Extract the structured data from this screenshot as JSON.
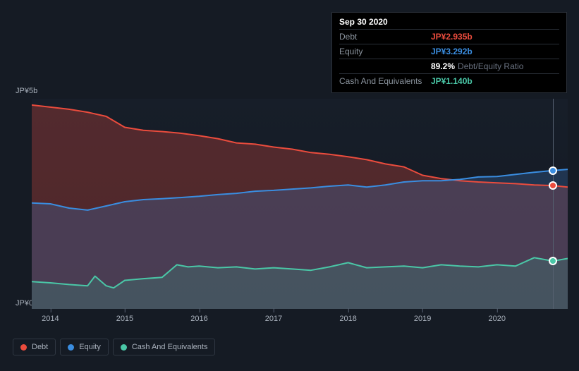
{
  "tooltip": {
    "date": "Sep 30 2020",
    "rows": [
      {
        "label": "Debt",
        "value": "JP¥2.935b",
        "cls": "v-debt"
      },
      {
        "label": "Equity",
        "value": "JP¥3.292b",
        "cls": "v-equity"
      },
      {
        "label": "",
        "value": "89.2%",
        "suffix": "Debt/Equity Ratio",
        "cls": "v-white"
      },
      {
        "label": "Cash And Equivalents",
        "value": "JP¥1.140b",
        "cls": "v-cash"
      }
    ]
  },
  "chart": {
    "type": "area",
    "background_color": "#171e29",
    "ylim": [
      0,
      5
    ],
    "y_unit_prefix": "JP¥",
    "y_unit_suffix": "b",
    "yticks": [
      {
        "v": 5,
        "label": "JP¥5b"
      },
      {
        "v": 0,
        "label": "JP¥0"
      }
    ],
    "xlim": [
      2013.75,
      2020.95
    ],
    "xticks": [
      2014,
      2015,
      2016,
      2017,
      2018,
      2019,
      2020
    ],
    "crosshair_x": 2020.75,
    "series": [
      {
        "name": "Debt",
        "stroke": "#eb4c3d",
        "fill": "rgba(195,65,58,0.35)",
        "line_width": 2,
        "marker_at_crosshair": 2.935,
        "points": [
          [
            2013.75,
            4.85
          ],
          [
            2014.0,
            4.8
          ],
          [
            2014.25,
            4.75
          ],
          [
            2014.5,
            4.68
          ],
          [
            2014.75,
            4.58
          ],
          [
            2015.0,
            4.32
          ],
          [
            2015.25,
            4.25
          ],
          [
            2015.5,
            4.22
          ],
          [
            2015.75,
            4.18
          ],
          [
            2016.0,
            4.12
          ],
          [
            2016.25,
            4.05
          ],
          [
            2016.5,
            3.95
          ],
          [
            2016.75,
            3.92
          ],
          [
            2017.0,
            3.85
          ],
          [
            2017.25,
            3.8
          ],
          [
            2017.5,
            3.72
          ],
          [
            2017.75,
            3.68
          ],
          [
            2018.0,
            3.62
          ],
          [
            2018.25,
            3.55
          ],
          [
            2018.5,
            3.45
          ],
          [
            2018.75,
            3.38
          ],
          [
            2019.0,
            3.18
          ],
          [
            2019.25,
            3.1
          ],
          [
            2019.5,
            3.05
          ],
          [
            2019.75,
            3.02
          ],
          [
            2020.0,
            3.0
          ],
          [
            2020.25,
            2.98
          ],
          [
            2020.5,
            2.95
          ],
          [
            2020.75,
            2.935
          ],
          [
            2020.95,
            2.9
          ]
        ]
      },
      {
        "name": "Equity",
        "stroke": "#3a8de0",
        "fill": "rgba(58,113,180,0.30)",
        "line_width": 2,
        "marker_at_crosshair": 3.292,
        "points": [
          [
            2013.75,
            2.52
          ],
          [
            2014.0,
            2.5
          ],
          [
            2014.25,
            2.4
          ],
          [
            2014.5,
            2.35
          ],
          [
            2014.75,
            2.45
          ],
          [
            2015.0,
            2.55
          ],
          [
            2015.25,
            2.6
          ],
          [
            2015.5,
            2.62
          ],
          [
            2015.75,
            2.65
          ],
          [
            2016.0,
            2.68
          ],
          [
            2016.25,
            2.72
          ],
          [
            2016.5,
            2.75
          ],
          [
            2016.75,
            2.8
          ],
          [
            2017.0,
            2.82
          ],
          [
            2017.25,
            2.85
          ],
          [
            2017.5,
            2.88
          ],
          [
            2017.75,
            2.92
          ],
          [
            2018.0,
            2.95
          ],
          [
            2018.25,
            2.9
          ],
          [
            2018.5,
            2.95
          ],
          [
            2018.75,
            3.02
          ],
          [
            2019.0,
            3.05
          ],
          [
            2019.25,
            3.05
          ],
          [
            2019.5,
            3.08
          ],
          [
            2019.75,
            3.14
          ],
          [
            2020.0,
            3.15
          ],
          [
            2020.25,
            3.2
          ],
          [
            2020.5,
            3.25
          ],
          [
            2020.75,
            3.292
          ],
          [
            2020.95,
            3.32
          ]
        ]
      },
      {
        "name": "Cash And Equivalents",
        "stroke": "#4ac7a7",
        "fill": "rgba(60,150,130,0.25)",
        "line_width": 2,
        "marker_at_crosshair": 1.14,
        "points": [
          [
            2013.75,
            0.65
          ],
          [
            2014.0,
            0.62
          ],
          [
            2014.25,
            0.58
          ],
          [
            2014.5,
            0.55
          ],
          [
            2014.6,
            0.78
          ],
          [
            2014.75,
            0.55
          ],
          [
            2014.85,
            0.5
          ],
          [
            2015.0,
            0.68
          ],
          [
            2015.25,
            0.72
          ],
          [
            2015.5,
            0.75
          ],
          [
            2015.7,
            1.05
          ],
          [
            2015.85,
            1.0
          ],
          [
            2016.0,
            1.02
          ],
          [
            2016.25,
            0.98
          ],
          [
            2016.5,
            1.0
          ],
          [
            2016.75,
            0.95
          ],
          [
            2017.0,
            0.98
          ],
          [
            2017.25,
            0.95
          ],
          [
            2017.5,
            0.92
          ],
          [
            2017.75,
            1.0
          ],
          [
            2018.0,
            1.1
          ],
          [
            2018.25,
            0.98
          ],
          [
            2018.5,
            1.0
          ],
          [
            2018.75,
            1.02
          ],
          [
            2019.0,
            0.98
          ],
          [
            2019.25,
            1.05
          ],
          [
            2019.5,
            1.02
          ],
          [
            2019.75,
            1.0
          ],
          [
            2020.0,
            1.05
          ],
          [
            2020.25,
            1.02
          ],
          [
            2020.5,
            1.22
          ],
          [
            2020.75,
            1.14
          ],
          [
            2020.95,
            1.2
          ]
        ]
      }
    ]
  },
  "legend": {
    "items": [
      {
        "label": "Debt",
        "color": "#eb4c3d"
      },
      {
        "label": "Equity",
        "color": "#3a8de0"
      },
      {
        "label": "Cash And Equivalents",
        "color": "#4ac7a7"
      }
    ]
  }
}
